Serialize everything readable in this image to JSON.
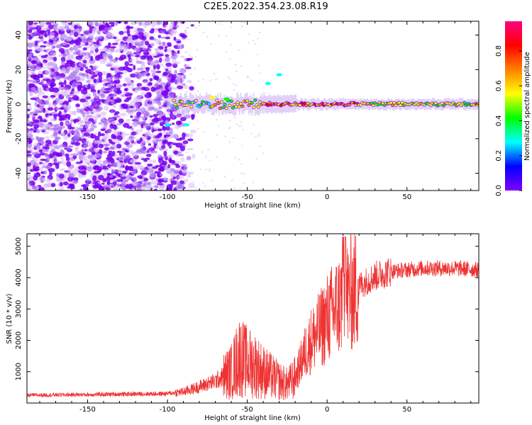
{
  "title": "C2E5.2022.354.23.08.R19",
  "chart_data": [
    {
      "type": "heatmap",
      "xlabel": "Height of straight line (km)",
      "ylabel": "Frequency (Hz)",
      "xlim": [
        -188,
        95
      ],
      "ylim": [
        -50,
        48
      ],
      "xticks": [
        -150,
        -100,
        -50,
        0,
        50
      ],
      "yticks": [
        -40,
        -20,
        0,
        20,
        40
      ],
      "colorbar": {
        "label": "Normalized spectral amplitude",
        "range": [
          0.0,
          0.97
        ],
        "ticks": [
          0.0,
          0.2,
          0.4,
          0.6,
          0.8
        ],
        "colors": [
          "#ffffff",
          "#8000ff",
          "#0000ff",
          "#00ffff",
          "#00ff00",
          "#ffff00",
          "#ff8000",
          "#ff0000",
          "#ff0080"
        ]
      },
      "features": [
        {
          "name": "noise",
          "x_range": [
            -188,
            -88
          ],
          "f_range": [
            -50,
            48
          ],
          "amplitude": 0.15
        },
        {
          "name": "carrier",
          "x_range": [
            -100,
            95
          ],
          "f_center": 0,
          "amplitude": 0.8
        }
      ]
    },
    {
      "type": "line",
      "xlabel": "Height of straight line (km)",
      "ylabel": "SNR (10 * v/v)",
      "xlim": [
        -188,
        95
      ],
      "ylim": [
        0,
        5400
      ],
      "xticks": [
        -150,
        -100,
        -50,
        0,
        50
      ],
      "yticks": [
        1000,
        2000,
        3000,
        4000,
        5000
      ],
      "color": "#ee3333",
      "x": [
        -188,
        -150,
        -100,
        -90,
        -80,
        -70,
        -60,
        -55,
        -50,
        -45,
        -40,
        -35,
        -30,
        -25,
        -20,
        -15,
        -10,
        -5,
        0,
        5,
        10,
        15,
        20,
        30,
        40,
        50,
        60,
        70,
        80,
        95
      ],
      "y": [
        250,
        270,
        300,
        360,
        520,
        700,
        1000,
        1500,
        1300,
        1200,
        1000,
        850,
        700,
        600,
        800,
        1500,
        2000,
        2300,
        2700,
        3000,
        3300,
        3500,
        3750,
        4050,
        4200,
        4250,
        4300,
        4300,
        4300,
        4250
      ]
    }
  ]
}
